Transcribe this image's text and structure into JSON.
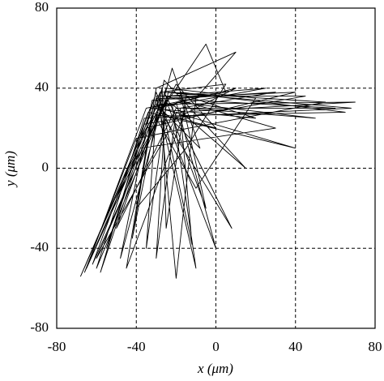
{
  "chart_data": {
    "type": "line",
    "xlabel": "x (μm)",
    "ylabel": "y (μm)",
    "color": "#000000",
    "grid": true,
    "xlim": [
      -80,
      80
    ],
    "ylim": [
      -80,
      80
    ],
    "xticks": [
      -80,
      -40,
      0,
      40,
      80
    ],
    "yticks": [
      -80,
      -40,
      0,
      40,
      80
    ],
    "x": [
      -30,
      10,
      -20,
      -60,
      -25,
      40,
      -35,
      -68,
      -28,
      5,
      -15,
      -40,
      -30,
      60,
      -20,
      -50,
      -25,
      20,
      -10,
      -30,
      -5,
      5,
      -35,
      -65,
      -28,
      70,
      -20,
      -30,
      -25,
      30,
      -38,
      -55,
      -30,
      0,
      -20,
      50,
      -15,
      -45,
      -30,
      10,
      -10,
      -20,
      -28,
      40,
      -34,
      -62,
      -25,
      -5,
      -18,
      65,
      -32,
      -42,
      -26,
      15,
      -22,
      -10,
      -30,
      45,
      -36,
      -58,
      -27,
      -25,
      -15,
      20,
      -33,
      -50,
      -20,
      0,
      -30,
      -35,
      -24,
      55,
      -40,
      -66,
      -28,
      -12,
      -18,
      30,
      -32,
      -48,
      -22,
      -8,
      -30,
      8,
      -26,
      68,
      -36,
      -60,
      -24,
      25,
      -30
    ],
    "values": [
      30,
      40,
      25,
      -45,
      35,
      38,
      20,
      -54,
      38,
      42,
      10,
      -20,
      35,
      30,
      30,
      -30,
      40,
      35,
      -10,
      25,
      62,
      38,
      30,
      -50,
      32,
      33,
      28,
      -45,
      36,
      20,
      10,
      -40,
      38,
      -40,
      33,
      25,
      30,
      -50,
      40,
      58,
      35,
      -55,
      30,
      10,
      28,
      -48,
      34,
      -20,
      38,
      28,
      26,
      -35,
      44,
      0,
      32,
      -50,
      36,
      36,
      22,
      -52,
      40,
      -30,
      36,
      25,
      30,
      -15,
      42,
      20,
      28,
      -40,
      38,
      33,
      15,
      -52,
      35,
      -38,
      30,
      38,
      34,
      -45,
      50,
      10,
      32,
      -30,
      38,
      30,
      25,
      -50,
      36,
      40,
      30
    ]
  }
}
